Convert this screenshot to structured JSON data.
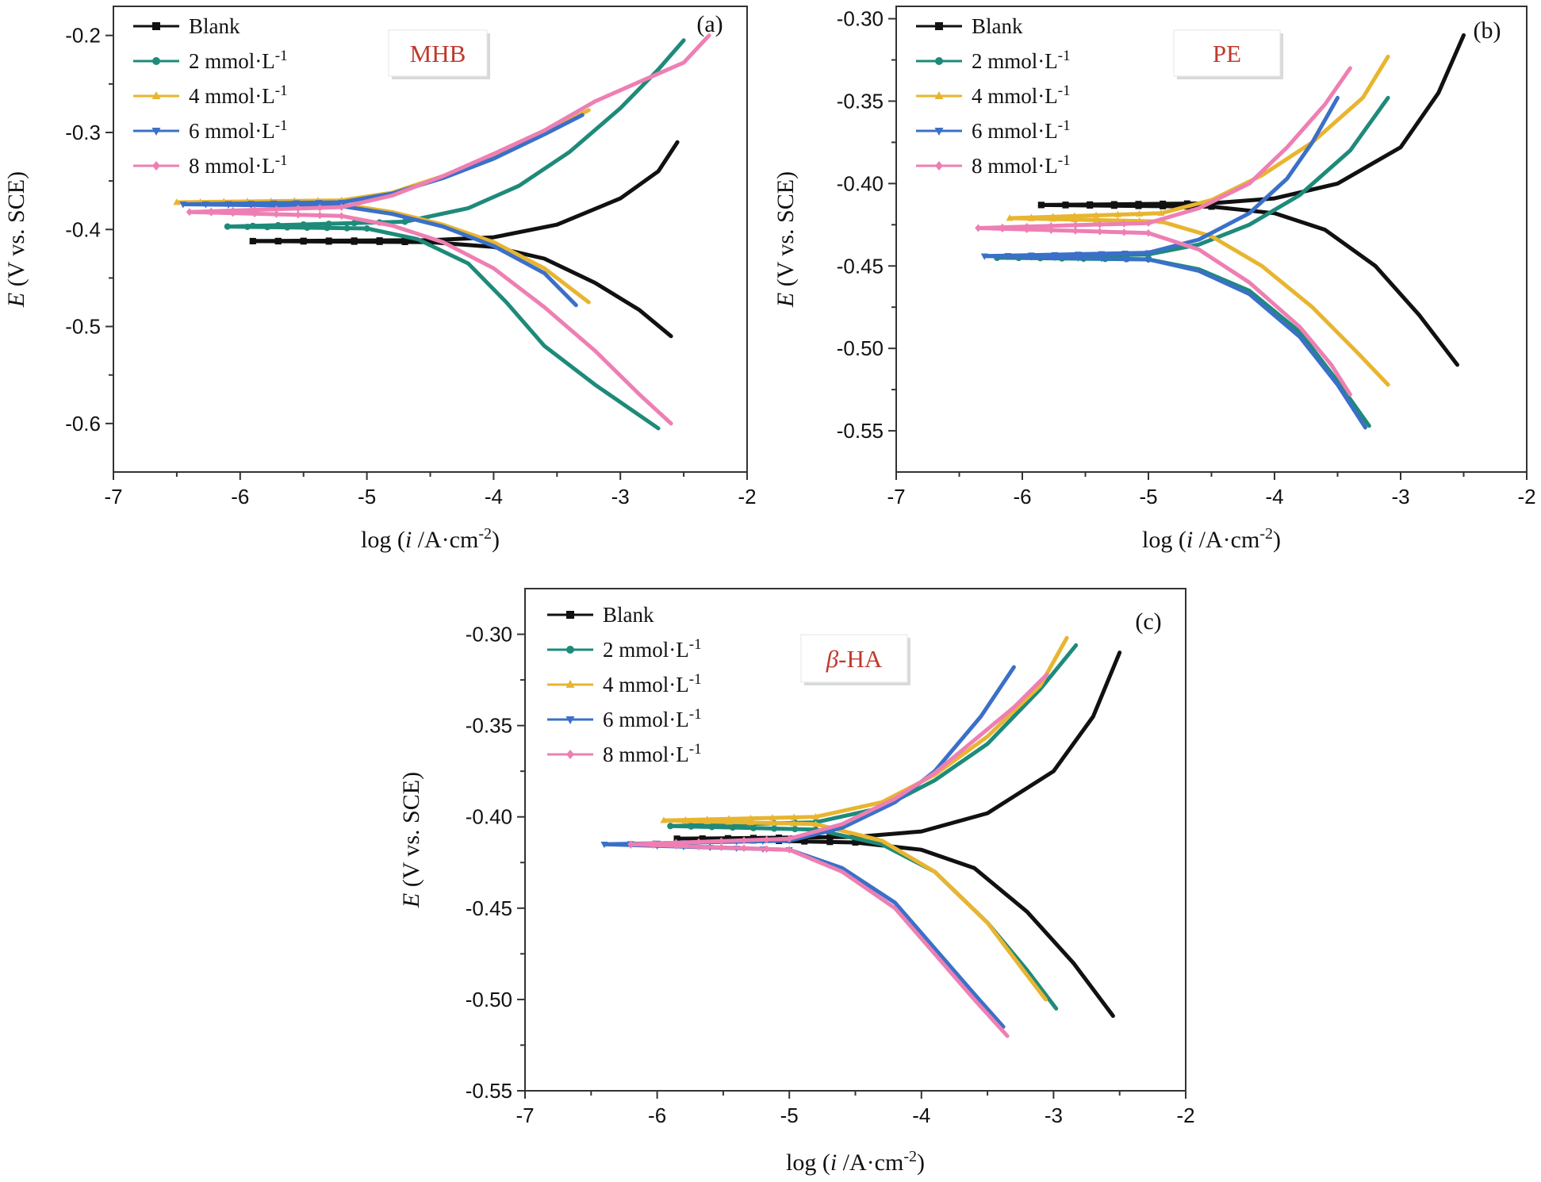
{
  "colors": {
    "Blank": "#111111",
    "2 mmol·L-1": "#1e8a7a",
    "4 mmol·L-1": "#e8b530",
    "6 mmol·L-1": "#3a70c8",
    "8 mmol·L-1": "#ee7fb3"
  },
  "markers": {
    "Blank": "square",
    "2 mmol·L-1": "circle",
    "4 mmol·L-1": "triangle-up",
    "6 mmol·L-1": "triangle-down",
    "8 mmol·L-1": "diamond"
  },
  "chart_data": [
    {
      "type": "line",
      "panel": "(a)",
      "tag": "MHB",
      "tag_italic_prefix": "",
      "xlabel": "log (i /A·cm-2)",
      "ylabel": "E (V vs. SCE)",
      "xlim": [
        -7,
        -2
      ],
      "ylim": [
        -0.65,
        -0.17
      ],
      "xticks": [
        -7,
        -6,
        -5,
        -4,
        -3,
        -2
      ],
      "yticks": [
        -0.6,
        -0.5,
        -0.4,
        -0.3,
        -0.2
      ],
      "ytick_labels": [
        "-0.6",
        "-0.5",
        "-0.4",
        "-0.3",
        "-0.2"
      ],
      "series": [
        {
          "name": "Blank",
          "ecorr": -0.412,
          "anodic": [
            [
              -5.9,
              -0.412
            ],
            [
              -4.5,
              -0.411
            ],
            [
              -4.0,
              -0.408
            ],
            [
              -3.5,
              -0.395
            ],
            [
              -3.0,
              -0.368
            ],
            [
              -2.7,
              -0.34
            ],
            [
              -2.55,
              -0.31
            ]
          ],
          "cathodic": [
            [
              -5.9,
              -0.412
            ],
            [
              -4.5,
              -0.413
            ],
            [
              -4.0,
              -0.418
            ],
            [
              -3.6,
              -0.43
            ],
            [
              -3.2,
              -0.455
            ],
            [
              -2.85,
              -0.483
            ],
            [
              -2.6,
              -0.51
            ]
          ]
        },
        {
          "name": "2 mmol·L-1",
          "ecorr": -0.397,
          "anodic": [
            [
              -6.1,
              -0.397
            ],
            [
              -4.7,
              -0.392
            ],
            [
              -4.2,
              -0.378
            ],
            [
              -3.8,
              -0.355
            ],
            [
              -3.4,
              -0.32
            ],
            [
              -3.0,
              -0.275
            ],
            [
              -2.7,
              -0.235
            ],
            [
              -2.5,
              -0.205
            ]
          ],
          "cathodic": [
            [
              -6.1,
              -0.397
            ],
            [
              -5.0,
              -0.399
            ],
            [
              -4.6,
              -0.41
            ],
            [
              -4.2,
              -0.435
            ],
            [
              -3.9,
              -0.475
            ],
            [
              -3.6,
              -0.52
            ],
            [
              -3.2,
              -0.56
            ],
            [
              -2.7,
              -0.605
            ]
          ]
        },
        {
          "name": "4 mmol·L-1",
          "ecorr": -0.372,
          "anodic": [
            [
              -6.5,
              -0.372
            ],
            [
              -5.2,
              -0.37
            ],
            [
              -4.8,
              -0.362
            ],
            [
              -4.4,
              -0.345
            ],
            [
              -4.0,
              -0.325
            ],
            [
              -3.6,
              -0.3
            ],
            [
              -3.25,
              -0.277
            ]
          ],
          "cathodic": [
            [
              -6.5,
              -0.372
            ],
            [
              -5.2,
              -0.374
            ],
            [
              -4.8,
              -0.382
            ],
            [
              -4.4,
              -0.395
            ],
            [
              -4.0,
              -0.413
            ],
            [
              -3.6,
              -0.44
            ],
            [
              -3.25,
              -0.475
            ]
          ]
        },
        {
          "name": "6 mmol·L-1",
          "ecorr": -0.374,
          "anodic": [
            [
              -6.45,
              -0.374
            ],
            [
              -5.2,
              -0.372
            ],
            [
              -4.8,
              -0.363
            ],
            [
              -4.4,
              -0.347
            ],
            [
              -4.0,
              -0.327
            ],
            [
              -3.6,
              -0.302
            ],
            [
              -3.3,
              -0.282
            ]
          ],
          "cathodic": [
            [
              -6.45,
              -0.374
            ],
            [
              -5.2,
              -0.376
            ],
            [
              -4.8,
              -0.384
            ],
            [
              -4.4,
              -0.397
            ],
            [
              -4.0,
              -0.417
            ],
            [
              -3.6,
              -0.445
            ],
            [
              -3.35,
              -0.478
            ]
          ]
        },
        {
          "name": "8 mmol·L-1",
          "ecorr": -0.382,
          "anodic": [
            [
              -6.4,
              -0.382
            ],
            [
              -5.2,
              -0.377
            ],
            [
              -4.8,
              -0.365
            ],
            [
              -4.4,
              -0.345
            ],
            [
              -4.0,
              -0.322
            ],
            [
              -3.6,
              -0.298
            ],
            [
              -3.2,
              -0.268
            ],
            [
              -2.8,
              -0.245
            ],
            [
              -2.5,
              -0.228
            ],
            [
              -2.3,
              -0.2
            ]
          ],
          "cathodic": [
            [
              -6.4,
              -0.382
            ],
            [
              -5.2,
              -0.386
            ],
            [
              -4.8,
              -0.396
            ],
            [
              -4.4,
              -0.413
            ],
            [
              -4.0,
              -0.44
            ],
            [
              -3.6,
              -0.48
            ],
            [
              -3.2,
              -0.525
            ],
            [
              -2.85,
              -0.57
            ],
            [
              -2.6,
              -0.6
            ]
          ]
        }
      ]
    },
    {
      "type": "line",
      "panel": "(b)",
      "tag": "PE",
      "tag_italic_prefix": "",
      "xlabel": "log (i /A·cm-2)",
      "ylabel": "E (V vs. SCE)",
      "xlim": [
        -7,
        -2
      ],
      "ylim": [
        -0.575,
        -0.2925
      ],
      "xticks": [
        -7,
        -6,
        -5,
        -4,
        -3,
        -2
      ],
      "yticks": [
        -0.55,
        -0.5,
        -0.45,
        -0.4,
        -0.35,
        -0.3
      ],
      "ytick_labels": [
        "-0.55",
        "-0.50",
        "-0.45",
        "-0.40",
        "-0.35",
        "-0.30"
      ],
      "series": [
        {
          "name": "Blank",
          "ecorr": -0.413,
          "anodic": [
            [
              -5.85,
              -0.413
            ],
            [
              -4.5,
              -0.412
            ],
            [
              -4.0,
              -0.409
            ],
            [
              -3.5,
              -0.4
            ],
            [
              -3.0,
              -0.378
            ],
            [
              -2.7,
              -0.345
            ],
            [
              -2.5,
              -0.31
            ]
          ],
          "cathodic": [
            [
              -5.85,
              -0.413
            ],
            [
              -4.5,
              -0.414
            ],
            [
              -4.0,
              -0.418
            ],
            [
              -3.6,
              -0.428
            ],
            [
              -3.2,
              -0.45
            ],
            [
              -2.85,
              -0.48
            ],
            [
              -2.55,
              -0.51
            ]
          ]
        },
        {
          "name": "2 mmol·L-1",
          "ecorr": -0.445,
          "anodic": [
            [
              -6.2,
              -0.445
            ],
            [
              -5.0,
              -0.443
            ],
            [
              -4.6,
              -0.437
            ],
            [
              -4.2,
              -0.425
            ],
            [
              -3.8,
              -0.407
            ],
            [
              -3.4,
              -0.38
            ],
            [
              -3.1,
              -0.348
            ]
          ],
          "cathodic": [
            [
              -6.2,
              -0.445
            ],
            [
              -5.0,
              -0.446
            ],
            [
              -4.6,
              -0.452
            ],
            [
              -4.2,
              -0.465
            ],
            [
              -3.8,
              -0.49
            ],
            [
              -3.5,
              -0.52
            ],
            [
              -3.25,
              -0.547
            ]
          ]
        },
        {
          "name": "4 mmol·L-1",
          "ecorr": -0.421,
          "anodic": [
            [
              -6.1,
              -0.421
            ],
            [
              -4.9,
              -0.418
            ],
            [
              -4.5,
              -0.41
            ],
            [
              -4.1,
              -0.395
            ],
            [
              -3.7,
              -0.375
            ],
            [
              -3.3,
              -0.348
            ],
            [
              -3.1,
              -0.323
            ]
          ],
          "cathodic": [
            [
              -6.1,
              -0.421
            ],
            [
              -4.9,
              -0.423
            ],
            [
              -4.5,
              -0.432
            ],
            [
              -4.1,
              -0.45
            ],
            [
              -3.7,
              -0.475
            ],
            [
              -3.35,
              -0.502
            ],
            [
              -3.1,
              -0.522
            ]
          ]
        },
        {
          "name": "6 mmol·L-1",
          "ecorr": -0.444,
          "anodic": [
            [
              -6.3,
              -0.444
            ],
            [
              -5.0,
              -0.442
            ],
            [
              -4.6,
              -0.434
            ],
            [
              -4.2,
              -0.418
            ],
            [
              -3.9,
              -0.397
            ],
            [
              -3.7,
              -0.375
            ],
            [
              -3.5,
              -0.348
            ]
          ],
          "cathodic": [
            [
              -6.3,
              -0.444
            ],
            [
              -5.0,
              -0.446
            ],
            [
              -4.6,
              -0.453
            ],
            [
              -4.2,
              -0.467
            ],
            [
              -3.8,
              -0.493
            ],
            [
              -3.5,
              -0.522
            ],
            [
              -3.28,
              -0.548
            ]
          ]
        },
        {
          "name": "8 mmol·L-1",
          "ecorr": -0.427,
          "anodic": [
            [
              -6.35,
              -0.427
            ],
            [
              -5.0,
              -0.424
            ],
            [
              -4.6,
              -0.415
            ],
            [
              -4.2,
              -0.4
            ],
            [
              -3.9,
              -0.378
            ],
            [
              -3.6,
              -0.352
            ],
            [
              -3.4,
              -0.33
            ]
          ],
          "cathodic": [
            [
              -6.35,
              -0.427
            ],
            [
              -5.0,
              -0.43
            ],
            [
              -4.6,
              -0.44
            ],
            [
              -4.2,
              -0.46
            ],
            [
              -3.8,
              -0.487
            ],
            [
              -3.55,
              -0.51
            ],
            [
              -3.4,
              -0.528
            ]
          ]
        }
      ]
    },
    {
      "type": "line",
      "panel": "(c)",
      "tag": "-HA",
      "tag_italic_prefix": "β",
      "xlabel": "log (i /A·cm-2)",
      "ylabel": "E (V vs. SCE)",
      "xlim": [
        -7,
        -2
      ],
      "ylim": [
        -0.55,
        -0.275
      ],
      "xticks": [
        -7,
        -6,
        -5,
        -4,
        -3,
        -2
      ],
      "yticks": [
        -0.55,
        -0.5,
        -0.45,
        -0.4,
        -0.35,
        -0.3
      ],
      "ytick_labels": [
        "-0.55",
        "-0.50",
        "-0.45",
        "-0.40",
        "-0.35",
        "-0.30"
      ],
      "series": [
        {
          "name": "Blank",
          "ecorr": -0.412,
          "anodic": [
            [
              -5.85,
              -0.412
            ],
            [
              -4.5,
              -0.411
            ],
            [
              -4.0,
              -0.408
            ],
            [
              -3.5,
              -0.398
            ],
            [
              -3.0,
              -0.375
            ],
            [
              -2.7,
              -0.345
            ],
            [
              -2.5,
              -0.31
            ]
          ],
          "cathodic": [
            [
              -5.85,
              -0.412
            ],
            [
              -4.5,
              -0.414
            ],
            [
              -4.0,
              -0.418
            ],
            [
              -3.6,
              -0.428
            ],
            [
              -3.2,
              -0.452
            ],
            [
              -2.85,
              -0.48
            ],
            [
              -2.55,
              -0.509
            ]
          ]
        },
        {
          "name": "2 mmol·L-1",
          "ecorr": -0.405,
          "anodic": [
            [
              -5.9,
              -0.405
            ],
            [
              -4.8,
              -0.403
            ],
            [
              -4.3,
              -0.395
            ],
            [
              -3.9,
              -0.38
            ],
            [
              -3.5,
              -0.36
            ],
            [
              -3.1,
              -0.33
            ],
            [
              -2.83,
              -0.306
            ]
          ],
          "cathodic": [
            [
              -5.9,
              -0.405
            ],
            [
              -4.8,
              -0.407
            ],
            [
              -4.3,
              -0.415
            ],
            [
              -3.9,
              -0.43
            ],
            [
              -3.5,
              -0.458
            ],
            [
              -3.2,
              -0.484
            ],
            [
              -2.98,
              -0.505
            ]
          ]
        },
        {
          "name": "4 mmol·L-1",
          "ecorr": -0.402,
          "anodic": [
            [
              -5.95,
              -0.402
            ],
            [
              -4.8,
              -0.4
            ],
            [
              -4.3,
              -0.392
            ],
            [
              -3.9,
              -0.377
            ],
            [
              -3.5,
              -0.356
            ],
            [
              -3.1,
              -0.328
            ],
            [
              -2.9,
              -0.302
            ]
          ],
          "cathodic": [
            [
              -5.95,
              -0.402
            ],
            [
              -4.8,
              -0.404
            ],
            [
              -4.3,
              -0.413
            ],
            [
              -3.9,
              -0.43
            ],
            [
              -3.5,
              -0.458
            ],
            [
              -3.25,
              -0.482
            ],
            [
              -3.06,
              -0.5
            ]
          ]
        },
        {
          "name": "6 mmol·L-1",
          "ecorr": -0.415,
          "anodic": [
            [
              -6.4,
              -0.415
            ],
            [
              -5.0,
              -0.413
            ],
            [
              -4.6,
              -0.406
            ],
            [
              -4.2,
              -0.392
            ],
            [
              -3.9,
              -0.375
            ],
            [
              -3.55,
              -0.345
            ],
            [
              -3.3,
              -0.318
            ]
          ],
          "cathodic": [
            [
              -6.4,
              -0.415
            ],
            [
              -5.0,
              -0.418
            ],
            [
              -4.6,
              -0.428
            ],
            [
              -4.2,
              -0.447
            ],
            [
              -3.9,
              -0.472
            ],
            [
              -3.6,
              -0.497
            ],
            [
              -3.38,
              -0.515
            ]
          ]
        },
        {
          "name": "8 mmol·L-1",
          "ecorr": -0.415,
          "anodic": [
            [
              -6.2,
              -0.415
            ],
            [
              -5.0,
              -0.412
            ],
            [
              -4.6,
              -0.404
            ],
            [
              -4.2,
              -0.39
            ],
            [
              -3.9,
              -0.376
            ],
            [
              -3.6,
              -0.358
            ],
            [
              -3.3,
              -0.34
            ],
            [
              -3.05,
              -0.322
            ]
          ],
          "cathodic": [
            [
              -6.2,
              -0.415
            ],
            [
              -5.0,
              -0.418
            ],
            [
              -4.6,
              -0.43
            ],
            [
              -4.2,
              -0.45
            ],
            [
              -3.9,
              -0.475
            ],
            [
              -3.6,
              -0.5
            ],
            [
              -3.35,
              -0.52
            ]
          ]
        }
      ]
    }
  ]
}
